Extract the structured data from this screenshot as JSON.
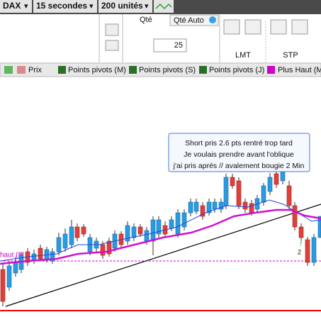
{
  "toolbar": {
    "instrument": "DAX",
    "interval": "15 secondes",
    "units": "200 unités"
  },
  "order_panel": {
    "qty_label": "Qté",
    "qty_auto": "Qté Auto",
    "qty_value": "25",
    "lmt": "LMT",
    "stp": "STP"
  },
  "tabs": [
    "Prix",
    "Points pivots (M)",
    "Points pivots (S)",
    "Points pivots (J)",
    "Plus Haut (M"
  ],
  "chart": {
    "annotation": [
      "Short pris 2.6 pts rentré trop tard",
      "Je voulais prendre avant l'oblique",
      "j'ai pris aprés // avalement bougie 2 Min"
    ],
    "line_label": "haut (M",
    "marker_label": "2"
  }
}
